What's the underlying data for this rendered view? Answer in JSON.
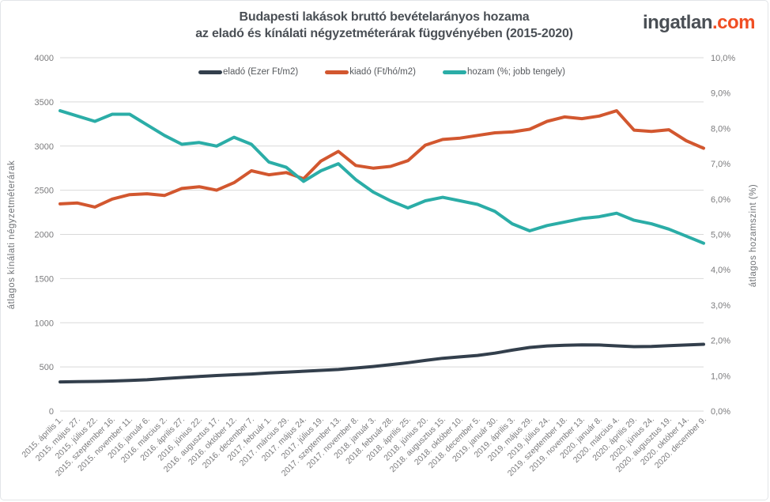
{
  "header": {
    "title_line1": "Budapesti lakások bruttó bevételarányos hozama",
    "title_line2": "az eladó és kínálati négyzetméterárak függvényében (2015-2020)",
    "logo_text": "ingatlan",
    "logo_suffix": ".com"
  },
  "chart_data": {
    "type": "line",
    "title": "Budapesti lakások bruttó bevételarányos hozama az eladó és kínálati négyzetméterárak függvényében (2015-2020)",
    "grid": "horizontal",
    "legend_position": "top-center",
    "grid_color": "#d9d9d9",
    "tick_color": "#7b7b7d",
    "left_axis": {
      "label": "átlagos  kínálati  négyzetméterárak",
      "min": 0,
      "max": 4000,
      "ticks": [
        "4000",
        "3500",
        "3000",
        "2500",
        "2000",
        "1500",
        "1000",
        "500",
        "0"
      ]
    },
    "right_axis": {
      "label": "átlagos  hozamszint  (%)",
      "min": 0,
      "max": 10,
      "ticks": [
        "10,0%",
        "9,0%",
        "8,0%",
        "7,0%",
        "6,0%",
        "5,0%",
        "4,0%",
        "3,0%",
        "2,0%",
        "1,0%",
        "0,0%"
      ]
    },
    "categories": [
      "2015. április 1.",
      "2015. május 27.",
      "2015. július 22.",
      "2015. szeptember 16.",
      "2015. november 11.",
      "2016. január 6.",
      "2016. március 2.",
      "2016. április 27.",
      "2016. június 22.",
      "2016. augusztus 17.",
      "2016. október 12.",
      "2016. december 7.",
      "2017. február 1.",
      "2017. március 29.",
      "2017. május 24.",
      "2017. július 19.",
      "2017. szeptember 13.",
      "2017. november 8.",
      "2018. január 3.",
      "2018. február 28.",
      "2018. április 25.",
      "2018. június 20.",
      "2018. augusztus 15.",
      "2018. október 10.",
      "2018. december 5.",
      "2019. január 30.",
      "2019. április 3.",
      "2019. május 29.",
      "2019. július 24.",
      "2019. szeptember 18.",
      "2019. november 13.",
      "2020. január 8.",
      "2020. március 4.",
      "2020. április 29.",
      "2020. június 24.",
      "2020. augusztus 19.",
      "2020. október 14.",
      "2020. december 9."
    ],
    "series": [
      {
        "id": "elado",
        "name": "eladó (Ezer Ft/m2)",
        "color": "#333f4c",
        "axis": "left",
        "values": [
          330,
          333,
          336,
          340,
          346,
          354,
          368,
          380,
          392,
          403,
          412,
          420,
          431,
          441,
          451,
          461,
          471,
          488,
          505,
          525,
          548,
          574,
          598,
          614,
          630,
          656,
          690,
          720,
          737,
          745,
          750,
          748,
          738,
          729,
          732,
          740,
          748,
          756
        ]
      },
      {
        "id": "kiado",
        "name": "kiadó (Ft/hó/m2)",
        "color": "#d2572f",
        "axis": "left",
        "values": [
          2345,
          2355,
          2310,
          2400,
          2450,
          2460,
          2440,
          2520,
          2540,
          2500,
          2585,
          2720,
          2675,
          2700,
          2630,
          2830,
          2940,
          2780,
          2750,
          2770,
          2835,
          3010,
          3075,
          3090,
          3120,
          3150,
          3160,
          3190,
          3280,
          3330,
          3310,
          3340,
          3400,
          3180,
          3165,
          3185,
          3060,
          2975
        ]
      },
      {
        "id": "hozam",
        "name": "hozam (%; jobb tengely)",
        "color": "#2bada7",
        "axis": "right",
        "values": [
          8.5,
          8.35,
          8.2,
          8.4,
          8.4,
          8.1,
          7.8,
          7.55,
          7.6,
          7.5,
          7.75,
          7.55,
          7.05,
          6.9,
          6.5,
          6.8,
          7.0,
          6.55,
          6.2,
          5.95,
          5.75,
          5.95,
          6.05,
          5.95,
          5.85,
          5.65,
          5.3,
          5.1,
          5.25,
          5.35,
          5.45,
          5.5,
          5.6,
          5.4,
          5.3,
          5.15,
          4.95,
          4.75
        ]
      }
    ]
  }
}
